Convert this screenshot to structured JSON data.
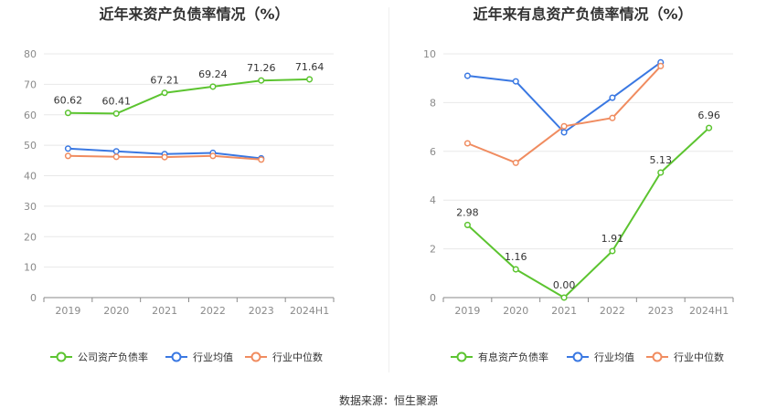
{
  "source": "数据来源：恒生聚源",
  "colors": {
    "green": "#5cc430",
    "blue": "#3a78e2",
    "orange": "#f08c60",
    "grid": "#e8e8e8",
    "axis": "#8a8a8a"
  },
  "chart_data": [
    {
      "type": "line",
      "title": "近年来资产负债率情况（%）",
      "categories": [
        "2019",
        "2020",
        "2021",
        "2022",
        "2023",
        "2024H1"
      ],
      "ylim": [
        0,
        80
      ],
      "yticks": [
        0,
        10,
        20,
        30,
        40,
        50,
        60,
        70,
        80
      ],
      "legend_position": "bottom",
      "grid": true,
      "series": [
        {
          "name": "公司资产负债率",
          "color": "#5cc430",
          "labeled": true,
          "values": [
            60.62,
            60.41,
            67.21,
            69.24,
            71.26,
            71.64
          ],
          "labels": [
            "60.62",
            "60.41",
            "67.21",
            "69.24",
            "71.26",
            "71.64"
          ]
        },
        {
          "name": "行业均值",
          "color": "#3a78e2",
          "labeled": false,
          "values": [
            48.9,
            48.0,
            47.1,
            47.5,
            45.7,
            null
          ]
        },
        {
          "name": "行业中位数",
          "color": "#f08c60",
          "labeled": false,
          "values": [
            46.5,
            46.2,
            46.1,
            46.5,
            45.3,
            null
          ]
        }
      ]
    },
    {
      "type": "line",
      "title": "近年来有息资产负债率情况（%）",
      "categories": [
        "2019",
        "2020",
        "2021",
        "2022",
        "2023",
        "2024H1"
      ],
      "ylim": [
        0,
        10
      ],
      "yticks": [
        0,
        2,
        4,
        6,
        8,
        10
      ],
      "legend_position": "bottom",
      "grid": true,
      "series": [
        {
          "name": "有息资产负债率",
          "color": "#5cc430",
          "labeled": true,
          "values": [
            2.98,
            1.16,
            0.0,
            1.91,
            5.13,
            6.96
          ],
          "labels": [
            "2.98",
            "1.16",
            "0.00",
            "1.91",
            "5.13",
            "6.96"
          ]
        },
        {
          "name": "行业均值",
          "color": "#3a78e2",
          "labeled": false,
          "values": [
            9.1,
            8.87,
            6.78,
            8.2,
            9.65,
            null
          ]
        },
        {
          "name": "行业中位数",
          "color": "#f08c60",
          "labeled": false,
          "values": [
            6.33,
            5.53,
            7.03,
            7.37,
            9.5,
            null
          ]
        }
      ]
    }
  ]
}
